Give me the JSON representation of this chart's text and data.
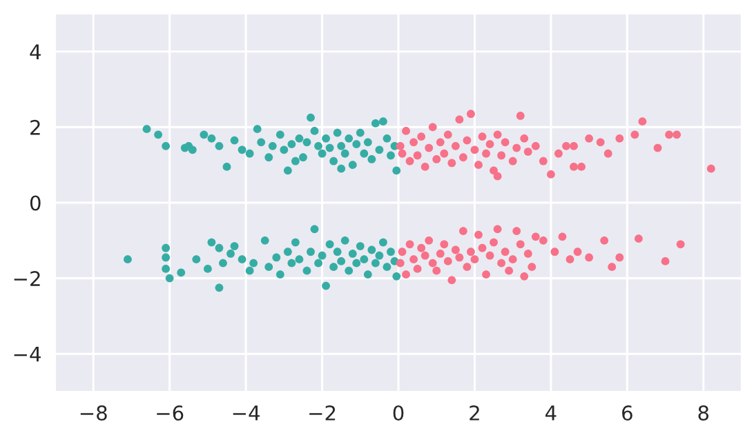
{
  "chart_data": {
    "type": "scatter",
    "xlim": [
      -9,
      9
    ],
    "ylim": [
      -5,
      5
    ],
    "xticks": [
      {
        "value": -8,
        "label": "−8"
      },
      {
        "value": -6,
        "label": "−6"
      },
      {
        "value": -4,
        "label": "−4"
      },
      {
        "value": -2,
        "label": "−2"
      },
      0,
      2,
      4,
      6,
      8
    ],
    "yticks": [
      {
        "value": -4,
        "label": "−4"
      },
      {
        "value": -2,
        "label": "−2"
      },
      0,
      2,
      4
    ],
    "grid": true,
    "marker": "circle",
    "series": [
      {
        "color": "#36ada4",
        "x": [
          -6.6,
          -6.3,
          -6.1,
          -5.6,
          -5.4,
          -5.5,
          -5.1,
          -4.9,
          -4.7,
          -4.5,
          -4.3,
          -4.1,
          -3.9,
          -3.7,
          -3.6,
          -3.4,
          -3.3,
          -3.1,
          -3.0,
          -2.9,
          -2.8,
          -2.6,
          -2.5,
          -2.4,
          -2.3,
          -2.2,
          -2.1,
          -2.0,
          -1.9,
          -1.8,
          -1.7,
          -1.6,
          -1.5,
          -1.4,
          -1.3,
          -1.2,
          -1.1,
          -1.0,
          -0.9,
          -0.8,
          -0.7,
          -0.6,
          -0.5,
          -0.4,
          -0.3,
          -0.2,
          -0.1,
          -0.05,
          -2.7,
          -1.5,
          -7.1,
          -6.1,
          -6.1,
          -6.1,
          -6.0,
          -5.7,
          -5.3,
          -5.0,
          -4.9,
          -4.7,
          -4.6,
          -4.4,
          -4.3,
          -4.1,
          -3.9,
          -3.8,
          -4.7,
          -3.5,
          -3.4,
          -3.2,
          -3.1,
          -2.9,
          -2.8,
          -2.7,
          -2.6,
          -2.4,
          -2.3,
          -2.2,
          -2.1,
          -2.0,
          -1.9,
          -1.8,
          -1.7,
          -1.6,
          -1.5,
          -1.4,
          -1.3,
          -1.2,
          -1.1,
          -1.0,
          -0.9,
          -0.8,
          -0.7,
          -0.6,
          -0.5,
          -0.4,
          -0.3,
          -0.2,
          -0.1,
          -0.05
        ],
        "values": [
          1.95,
          1.8,
          1.5,
          1.45,
          1.4,
          1.5,
          1.8,
          1.7,
          1.5,
          0.95,
          1.65,
          1.4,
          1.3,
          1.95,
          1.6,
          1.2,
          1.5,
          1.8,
          1.4,
          0.85,
          1.55,
          1.7,
          1.2,
          1.6,
          2.25,
          1.9,
          1.5,
          1.3,
          1.7,
          1.45,
          1.1,
          1.85,
          1.5,
          1.3,
          1.7,
          1.0,
          1.55,
          1.85,
          1.3,
          1.6,
          1.15,
          2.1,
          1.4,
          2.15,
          1.7,
          1.25,
          1.5,
          0.85,
          1.1,
          0.9,
          -1.5,
          -1.2,
          -1.45,
          -1.75,
          -2.0,
          -1.85,
          -1.5,
          -1.75,
          -1.05,
          -1.2,
          -1.6,
          -1.35,
          -1.15,
          -1.5,
          -1.8,
          -1.6,
          -2.25,
          -1.0,
          -1.7,
          -1.45,
          -1.9,
          -1.3,
          -1.6,
          -1.05,
          -1.5,
          -1.8,
          -1.3,
          -0.7,
          -1.6,
          -1.4,
          -2.2,
          -1.1,
          -1.7,
          -1.3,
          -1.55,
          -1.0,
          -1.8,
          -1.35,
          -1.6,
          -1.15,
          -1.5,
          -1.9,
          -1.25,
          -1.6,
          -1.4,
          -1.05,
          -1.7,
          -1.3,
          -1.55,
          -1.95
        ]
      },
      {
        "color": "#f77189",
        "x": [
          0.05,
          0.1,
          0.2,
          0.3,
          0.4,
          0.5,
          0.6,
          0.7,
          0.8,
          0.9,
          1.0,
          1.1,
          1.2,
          1.3,
          1.4,
          1.5,
          1.6,
          1.7,
          1.8,
          1.9,
          2.0,
          2.1,
          2.2,
          2.3,
          2.4,
          2.5,
          2.6,
          2.7,
          2.8,
          3.0,
          3.1,
          3.2,
          3.3,
          3.4,
          3.6,
          3.8,
          4.0,
          4.2,
          4.4,
          4.6,
          4.6,
          4.8,
          5.0,
          5.3,
          5.5,
          5.8,
          6.2,
          6.4,
          6.8,
          7.1,
          8.2,
          7.3,
          2.6,
          0.05,
          0.1,
          0.2,
          0.3,
          0.4,
          0.5,
          0.6,
          0.7,
          0.8,
          0.9,
          1.0,
          1.1,
          1.2,
          1.3,
          1.4,
          1.5,
          1.6,
          1.7,
          1.8,
          1.9,
          2.0,
          2.1,
          2.2,
          2.3,
          2.4,
          2.5,
          2.6,
          2.7,
          2.8,
          2.9,
          3.0,
          3.1,
          3.2,
          3.3,
          3.4,
          3.5,
          3.8,
          4.1,
          4.3,
          4.5,
          4.7,
          5.0,
          5.4,
          5.6,
          5.8,
          6.3,
          7.0,
          7.4,
          3.6
        ],
        "values": [
          1.5,
          1.3,
          1.9,
          1.1,
          1.6,
          1.25,
          1.75,
          0.95,
          1.45,
          2.0,
          1.15,
          1.6,
          1.3,
          1.8,
          1.05,
          1.5,
          2.2,
          1.2,
          1.65,
          2.35,
          1.4,
          1.0,
          1.75,
          1.3,
          1.55,
          0.85,
          1.8,
          1.25,
          1.6,
          1.1,
          1.45,
          2.3,
          1.7,
          1.35,
          1.5,
          1.1,
          0.75,
          1.3,
          1.5,
          1.5,
          0.95,
          0.95,
          1.7,
          1.6,
          1.3,
          1.7,
          1.8,
          2.15,
          1.45,
          1.8,
          0.9,
          1.8,
          0.7,
          -1.6,
          -1.3,
          -1.9,
          -1.1,
          -1.5,
          -1.75,
          -1.2,
          -1.4,
          -1.0,
          -1.6,
          -1.8,
          -1.35,
          -1.1,
          -1.55,
          -2.05,
          -1.25,
          -1.45,
          -0.75,
          -1.7,
          -1.3,
          -1.5,
          -0.85,
          -1.2,
          -1.9,
          -1.4,
          -1.05,
          -0.7,
          -1.6,
          -1.3,
          -1.8,
          -1.5,
          -0.75,
          -1.1,
          -1.95,
          -1.35,
          -1.7,
          -1.0,
          -1.3,
          -0.9,
          -1.5,
          -1.3,
          -1.45,
          -1.0,
          -1.7,
          -1.45,
          -0.95,
          -1.55,
          -1.1,
          -0.9
        ]
      }
    ]
  }
}
